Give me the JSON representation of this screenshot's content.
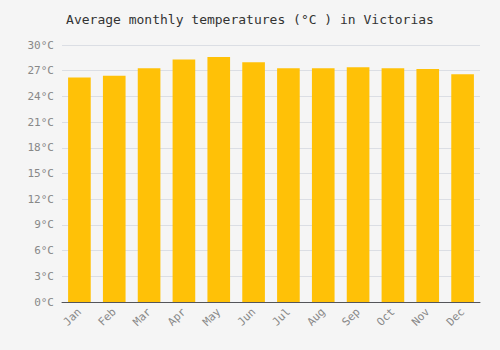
{
  "chart_data": {
    "type": "bar",
    "title": "Average monthly temperatures (°C ) in Victorias",
    "categories": [
      "Jan",
      "Feb",
      "Mar",
      "Apr",
      "May",
      "Jun",
      "Jul",
      "Aug",
      "Sep",
      "Oct",
      "Nov",
      "Dec"
    ],
    "values": [
      26.2,
      26.4,
      27.3,
      28.3,
      28.6,
      28.0,
      27.3,
      27.3,
      27.4,
      27.3,
      27.2,
      26.6
    ],
    "color": "#FFC107",
    "ylim": [
      0,
      30
    ],
    "yticks": [
      {
        "value": 0,
        "label": "0°C"
      },
      {
        "value": 3,
        "label": "3°C"
      },
      {
        "value": 6,
        "label": "6°C"
      },
      {
        "value": 9,
        "label": "9°C"
      },
      {
        "value": 12,
        "label": "12°C"
      },
      {
        "value": 15,
        "label": "15°C"
      },
      {
        "value": 18,
        "label": "18°C"
      },
      {
        "value": 21,
        "label": "21°C"
      },
      {
        "value": 24,
        "label": "24°C"
      },
      {
        "value": 27,
        "label": "27°C"
      },
      {
        "value": 30,
        "label": "30°C"
      }
    ],
    "grid": true
  }
}
